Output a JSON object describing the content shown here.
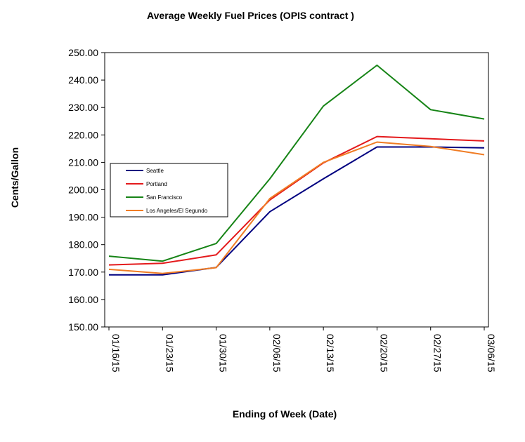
{
  "chart_data": {
    "type": "line",
    "title": "Average Weekly Fuel Prices (OPIS contract )",
    "xlabel": "Ending of Week (Date)",
    "ylabel": "Cents/Gallon",
    "categories": [
      "01/16/15",
      "01/23/15",
      "01/30/15",
      "02/06/15",
      "02/13/15",
      "02/20/15",
      "02/27/15",
      "03/06/15"
    ],
    "ylim": [
      150,
      250
    ],
    "ytick_step": 10,
    "ytick_decimals": 2,
    "grid": false,
    "legend_position": "left",
    "series": [
      {
        "name": "Seattle",
        "color": "#000080",
        "values": [
          169.0,
          169.0,
          171.7,
          192.0,
          204.0,
          215.6,
          215.6,
          215.3
        ]
      },
      {
        "name": "Portland",
        "color": "#e41a1c",
        "values": [
          172.6,
          173.2,
          176.3,
          196.3,
          209.8,
          219.4,
          218.6,
          217.8
        ]
      },
      {
        "name": "San Francisco",
        "color": "#168416",
        "values": [
          175.8,
          174.0,
          180.4,
          204.0,
          230.5,
          245.4,
          229.2,
          225.8
        ]
      },
      {
        "name": "Los Angeles/El Segundo",
        "color": "#f07c24",
        "values": [
          171.0,
          169.5,
          171.6,
          196.8,
          210.0,
          217.4,
          215.8,
          212.8
        ]
      }
    ]
  }
}
